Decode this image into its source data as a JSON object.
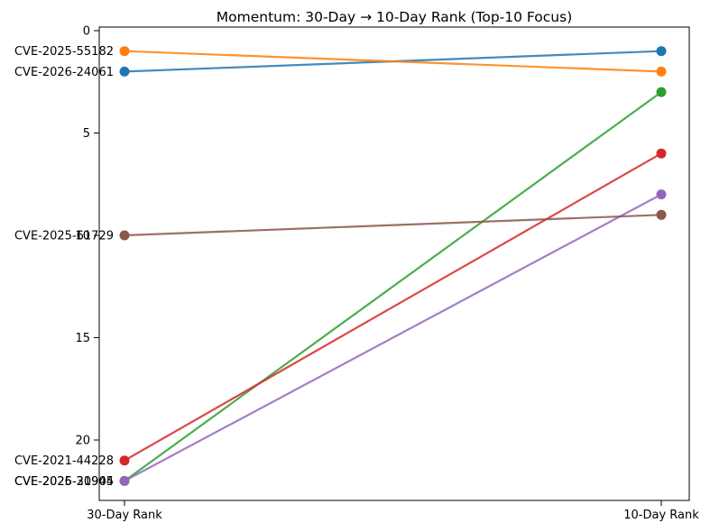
{
  "chart_data": {
    "type": "line",
    "variant": "slope-chart",
    "title": "Momentum: 30-Day → 10-Day Rank (Top-10 Focus)",
    "categories": [
      "30-Day Rank",
      "10-Day Rank"
    ],
    "xlabel": "",
    "ylabel": "",
    "grid": false,
    "legend": "none",
    "y_axis": {
      "inverted": true,
      "ticks": [
        0,
        5,
        10,
        15,
        20
      ],
      "meaning": "rank (lower is better)"
    },
    "series": [
      {
        "name": "CVE-2026-24061",
        "color": "#1f77b4",
        "values": [
          2,
          1
        ]
      },
      {
        "name": "CVE-2025-55182",
        "color": "#ff7f0e",
        "values": [
          1,
          2
        ]
      },
      {
        "name": "CVE-2025-21904",
        "color": "#2ca02c",
        "values": [
          22,
          3
        ]
      },
      {
        "name": "CVE-2021-44228",
        "color": "#d62728",
        "values": [
          21,
          6
        ]
      },
      {
        "name": "CVE-2026-30945",
        "color": "#9467bd",
        "values": [
          22,
          8
        ]
      },
      {
        "name": "CVE-2025-61729",
        "color": "#8c564b",
        "values": [
          10,
          9
        ]
      }
    ]
  }
}
